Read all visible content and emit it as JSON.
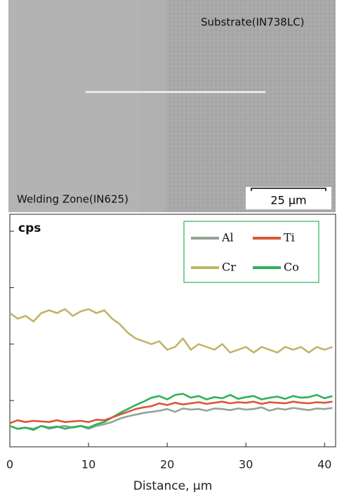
{
  "image": {
    "top_label": "Substrate(IN738LC)",
    "bottom_label": "Welding Zone(IN625)",
    "scale_bar": "25 µm"
  },
  "chart_data": {
    "type": "line",
    "y_unit_label": "cps",
    "x_label": "Distance, µm",
    "x": [
      0,
      1,
      2,
      3,
      4,
      5,
      6,
      7,
      8,
      9,
      10,
      11,
      12,
      13,
      14,
      15,
      16,
      17,
      18,
      19,
      20,
      21,
      22,
      23,
      24,
      25,
      26,
      27,
      28,
      29,
      30,
      31,
      32,
      33,
      34,
      35,
      36,
      37,
      38,
      39,
      40,
      41
    ],
    "series": [
      {
        "name": "Cr",
        "color": "#c2b466",
        "values": [
          2.55,
          2.45,
          2.5,
          2.4,
          2.55,
          2.6,
          2.55,
          2.62,
          2.5,
          2.58,
          2.62,
          2.55,
          2.6,
          2.45,
          2.35,
          2.2,
          2.1,
          2.05,
          2.0,
          2.05,
          1.9,
          1.95,
          2.1,
          1.9,
          2.0,
          1.95,
          1.9,
          2.0,
          1.85,
          1.9,
          1.95,
          1.85,
          1.95,
          1.9,
          1.85,
          1.95,
          1.9,
          1.95,
          1.85,
          1.95,
          1.9,
          1.95
        ]
      },
      {
        "name": "Al",
        "color": "#95a395",
        "values": [
          0.55,
          0.5,
          0.52,
          0.5,
          0.55,
          0.5,
          0.53,
          0.55,
          0.52,
          0.55,
          0.5,
          0.55,
          0.58,
          0.62,
          0.68,
          0.72,
          0.75,
          0.78,
          0.8,
          0.82,
          0.85,
          0.8,
          0.86,
          0.84,
          0.85,
          0.82,
          0.86,
          0.85,
          0.83,
          0.86,
          0.84,
          0.85,
          0.88,
          0.82,
          0.86,
          0.84,
          0.87,
          0.85,
          0.83,
          0.86,
          0.85,
          0.87
        ]
      },
      {
        "name": "Co",
        "color": "#2bb35a",
        "values": [
          0.55,
          0.5,
          0.52,
          0.48,
          0.55,
          0.52,
          0.54,
          0.5,
          0.53,
          0.55,
          0.52,
          0.58,
          0.62,
          0.7,
          0.78,
          0.85,
          0.92,
          0.98,
          1.05,
          1.08,
          1.02,
          1.1,
          1.12,
          1.05,
          1.08,
          1.02,
          1.06,
          1.04,
          1.1,
          1.03,
          1.06,
          1.08,
          1.02,
          1.05,
          1.07,
          1.03,
          1.08,
          1.05,
          1.06,
          1.1,
          1.04,
          1.08
        ]
      },
      {
        "name": "Ti",
        "color": "#dd5538",
        "values": [
          0.6,
          0.65,
          0.62,
          0.64,
          0.63,
          0.62,
          0.65,
          0.62,
          0.63,
          0.64,
          0.62,
          0.66,
          0.65,
          0.7,
          0.75,
          0.8,
          0.85,
          0.88,
          0.9,
          0.95,
          0.92,
          0.96,
          0.93,
          0.95,
          0.97,
          0.94,
          0.96,
          0.98,
          0.95,
          0.97,
          0.96,
          0.98,
          0.94,
          0.97,
          0.96,
          0.95,
          0.98,
          0.96,
          0.95,
          0.97,
          0.96,
          0.98
        ]
      }
    ],
    "legend_order": [
      "Al",
      "Ti",
      "Cr",
      "Co"
    ],
    "xlim": [
      0,
      41.4
    ],
    "xticks": [
      0,
      10,
      20,
      30,
      40
    ],
    "ylim": [
      0.18,
      4.3
    ],
    "yticks": [
      1,
      2,
      3,
      4
    ]
  }
}
